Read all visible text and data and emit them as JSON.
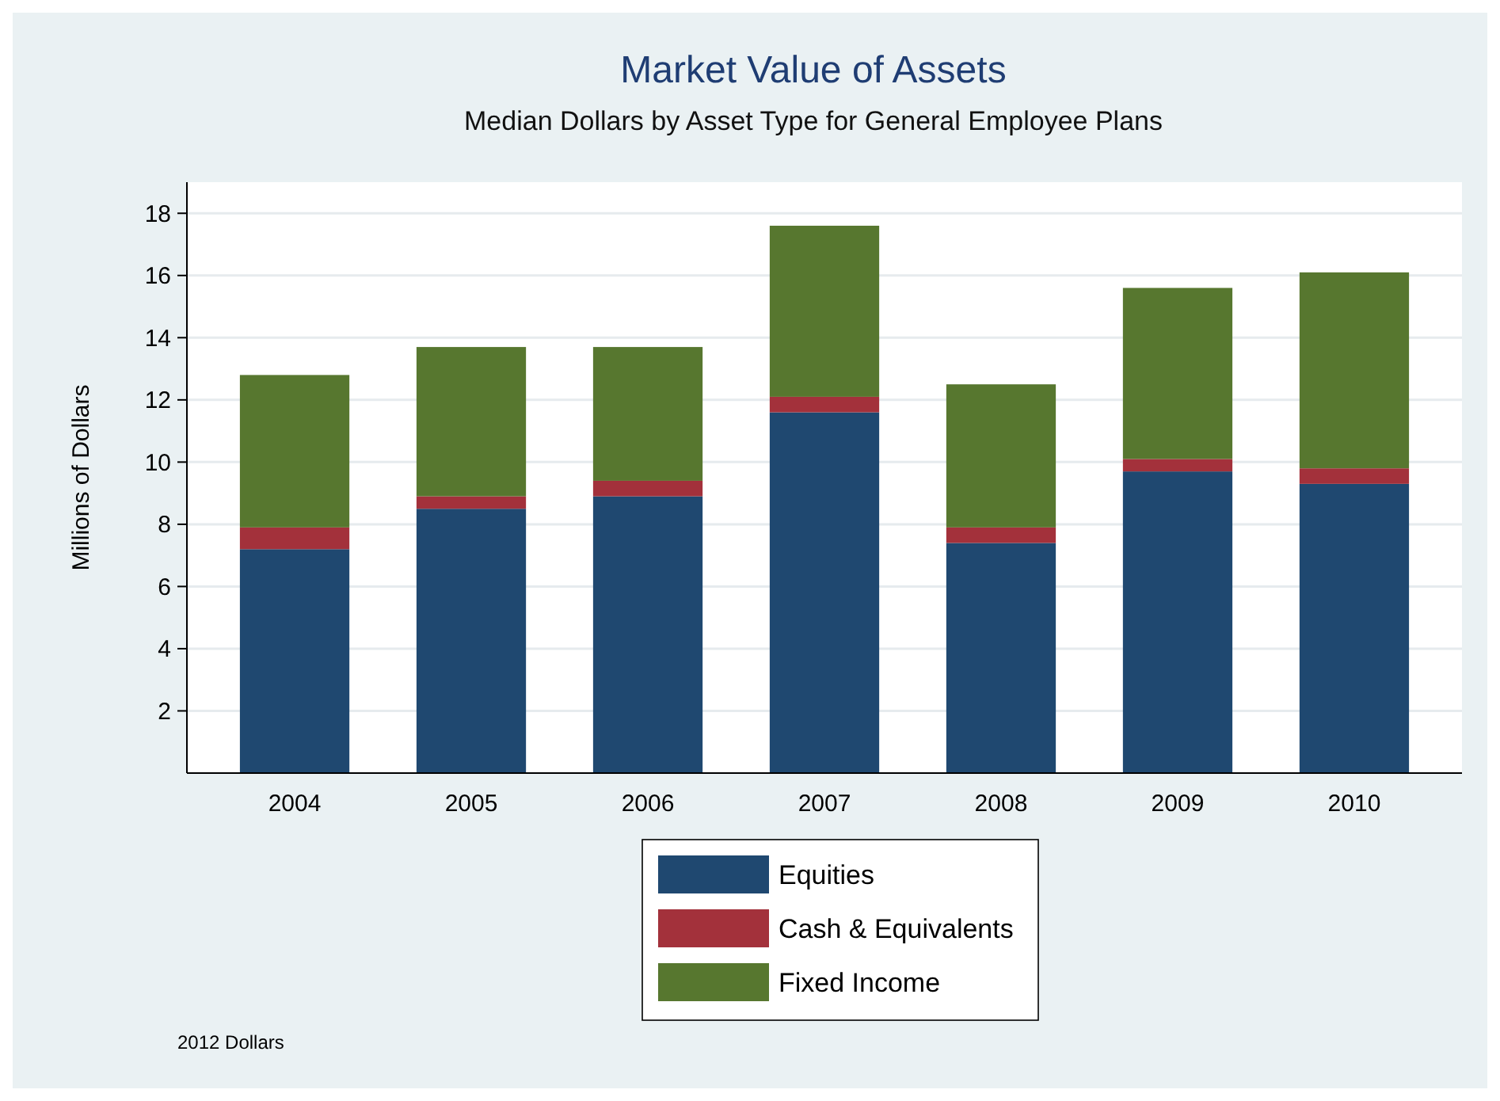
{
  "chart_data": {
    "type": "bar",
    "title": "Market Value of Assets",
    "subtitle": "Median Dollars by Asset Type for General Employee Plans",
    "ylabel": "Millions of Dollars",
    "categories": [
      "2004",
      "2005",
      "2006",
      "2007",
      "2008",
      "2009",
      "2010"
    ],
    "stacked": true,
    "series": [
      {
        "name": "Equities",
        "color": "#1f4870",
        "values": [
          7.2,
          8.5,
          8.9,
          11.6,
          7.4,
          9.7,
          9.3
        ]
      },
      {
        "name": "Cash & Equivalents",
        "color": "#a3313b",
        "values": [
          0.7,
          0.4,
          0.5,
          0.5,
          0.5,
          0.4,
          0.5
        ]
      },
      {
        "name": "Fixed Income",
        "color": "#57772f",
        "values": [
          4.9,
          4.8,
          4.3,
          5.5,
          4.6,
          5.5,
          6.3
        ]
      }
    ],
    "ylim": [
      0,
      19
    ],
    "yticks": [
      2,
      4,
      6,
      8,
      10,
      12,
      14,
      16,
      18
    ],
    "grid": "y",
    "legend": "bottom",
    "annotations": [
      "2012 Dollars"
    ]
  }
}
